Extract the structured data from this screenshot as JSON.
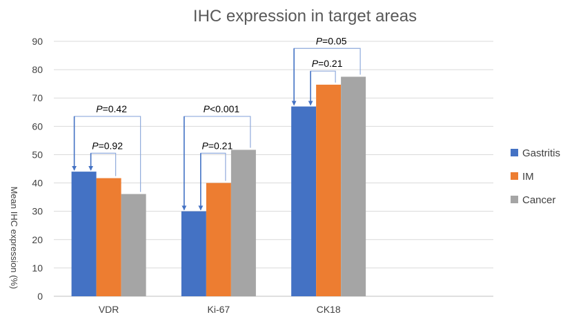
{
  "chart_data": {
    "type": "bar",
    "title": "IHC expression in target areas",
    "ylabel": "Mean IHC expression (%)",
    "xlabel": "",
    "ylim": [
      0,
      90
    ],
    "yticks": [
      0,
      10,
      20,
      30,
      40,
      50,
      60,
      70,
      80,
      90
    ],
    "grid": true,
    "legend_position": "right",
    "categories": [
      "VDR",
      "Ki-67",
      "CK18"
    ],
    "series": [
      {
        "name": "Gastritis",
        "color": "#4472c4",
        "values": [
          44,
          30,
          67
        ]
      },
      {
        "name": "IM",
        "color": "#ed7d31",
        "values": [
          41.7,
          40,
          74.7
        ]
      },
      {
        "name": "Cancer",
        "color": "#a5a5a5",
        "values": [
          36.1,
          51.7,
          77.5
        ]
      }
    ],
    "annotations": [
      {
        "category": "VDR",
        "prefix": "P",
        "text": "=0.42",
        "from": "Gastritis",
        "to": "Cancer",
        "level": 63.5
      },
      {
        "category": "VDR",
        "prefix": "P",
        "text": "=0.92",
        "from": "Gastritis",
        "to": "IM",
        "level": 50.5
      },
      {
        "category": "Ki-67",
        "prefix": "P",
        "text": "<0.001",
        "from": "Gastritis",
        "to": "Cancer",
        "level": 63.5
      },
      {
        "category": "Ki-67",
        "prefix": "P",
        "text": "=0.21",
        "from": "Gastritis",
        "to": "IM",
        "level": 50.5
      },
      {
        "category": "CK18",
        "prefix": "P",
        "text": "=0.05",
        "from": "Gastritis",
        "to": "Cancer",
        "level": 87.5
      },
      {
        "category": "CK18",
        "prefix": "P",
        "text": "=0.21",
        "from": "Gastritis",
        "to": "IM",
        "level": 79.5
      }
    ]
  }
}
